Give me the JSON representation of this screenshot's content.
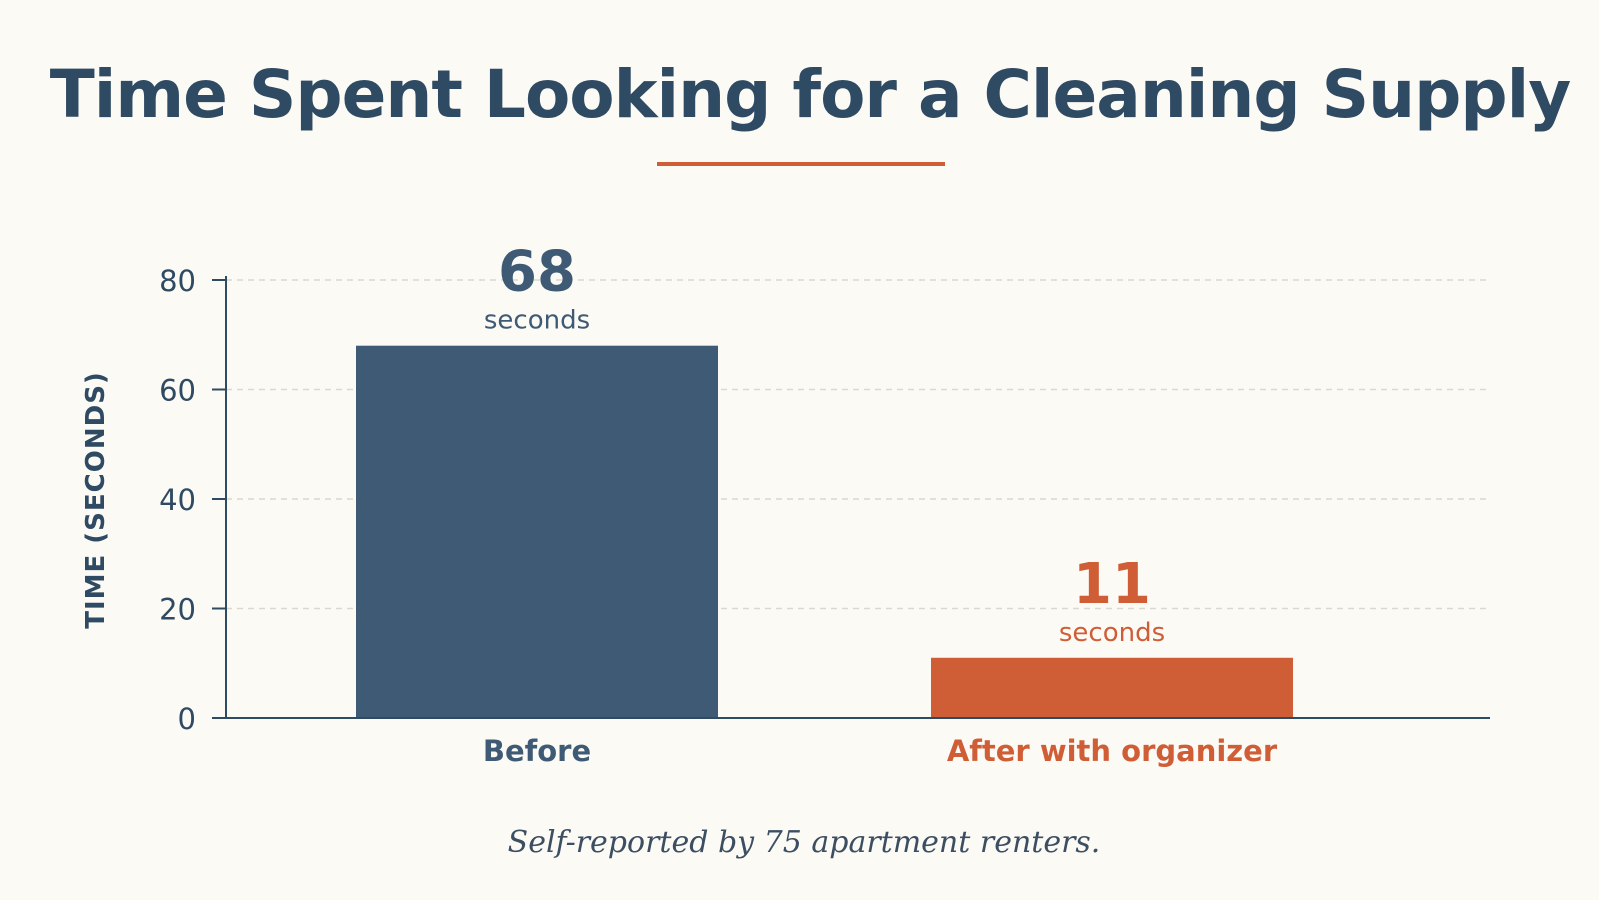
{
  "colors": {
    "background": "#fcfaf5",
    "primary": "#3e5a74",
    "accent": "#cf5e37",
    "text": "#2f4a63",
    "grid": "#dcd8cf"
  },
  "chart_data": {
    "type": "bar",
    "title": "Time Spent Looking for a Cleaning Supply",
    "xlabel": "",
    "ylabel": "TIME (SECONDS)",
    "ylim": [
      0,
      80
    ],
    "yticks": [
      "0",
      "20",
      "40",
      "60",
      "80"
    ],
    "grid": true,
    "categories": [
      "Before",
      "After with organizer"
    ],
    "values": [
      68,
      11
    ],
    "value_labels": [
      "68",
      "11"
    ],
    "unit_label": "seconds",
    "bar_colors": [
      "#3e5a74",
      "#cf5e37"
    ],
    "note": "Self-reported by 75 apartment renters."
  }
}
